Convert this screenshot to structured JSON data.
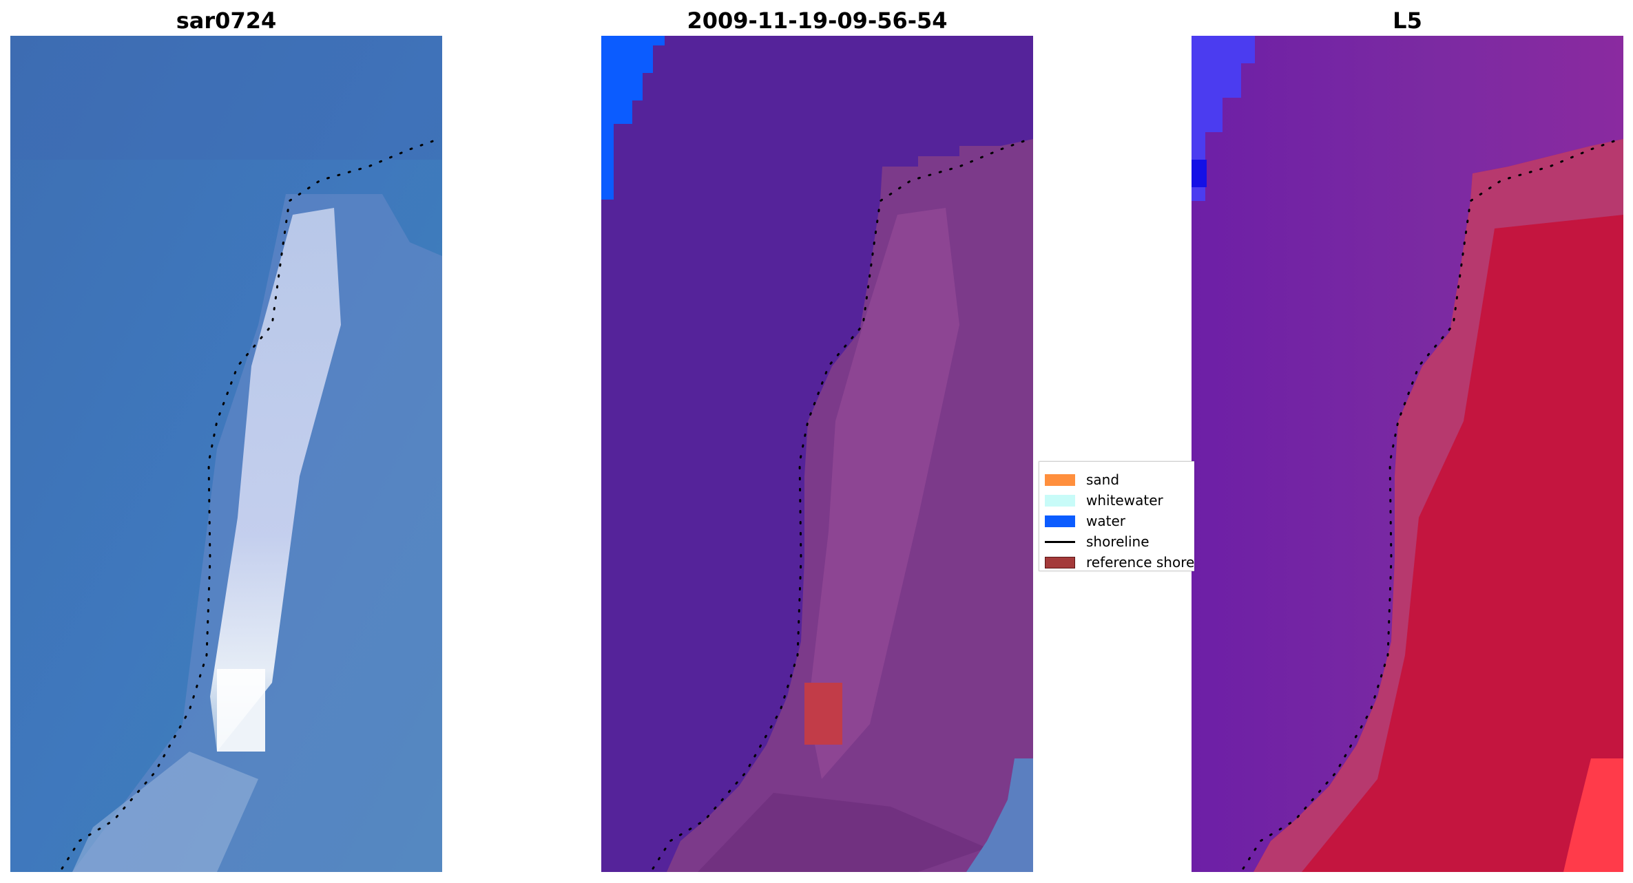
{
  "panels": [
    {
      "title": "sar0724"
    },
    {
      "title": "2009-11-19-09-56-54"
    },
    {
      "title": "L5"
    }
  ],
  "legend": {
    "items": [
      {
        "label": "sand",
        "color": "#ff8f3d",
        "type": "patch"
      },
      {
        "label": "whitewater",
        "color": "#c8fbf8",
        "type": "patch"
      },
      {
        "label": "water",
        "color": "#0b5cff",
        "type": "patch"
      },
      {
        "label": "shoreline",
        "color": "#000000",
        "type": "line"
      },
      {
        "label": "reference shoreline",
        "color": "#a43a3a",
        "type": "patch"
      }
    ]
  },
  "colors": {
    "rgb_water": "#3f74b6",
    "class_water_overlay": "#55239a",
    "class_land_overlay": "#7c3a8a",
    "index_low": "#6d1fa6",
    "index_high": "#c4153f",
    "shoreline_dots": "#000000"
  }
}
